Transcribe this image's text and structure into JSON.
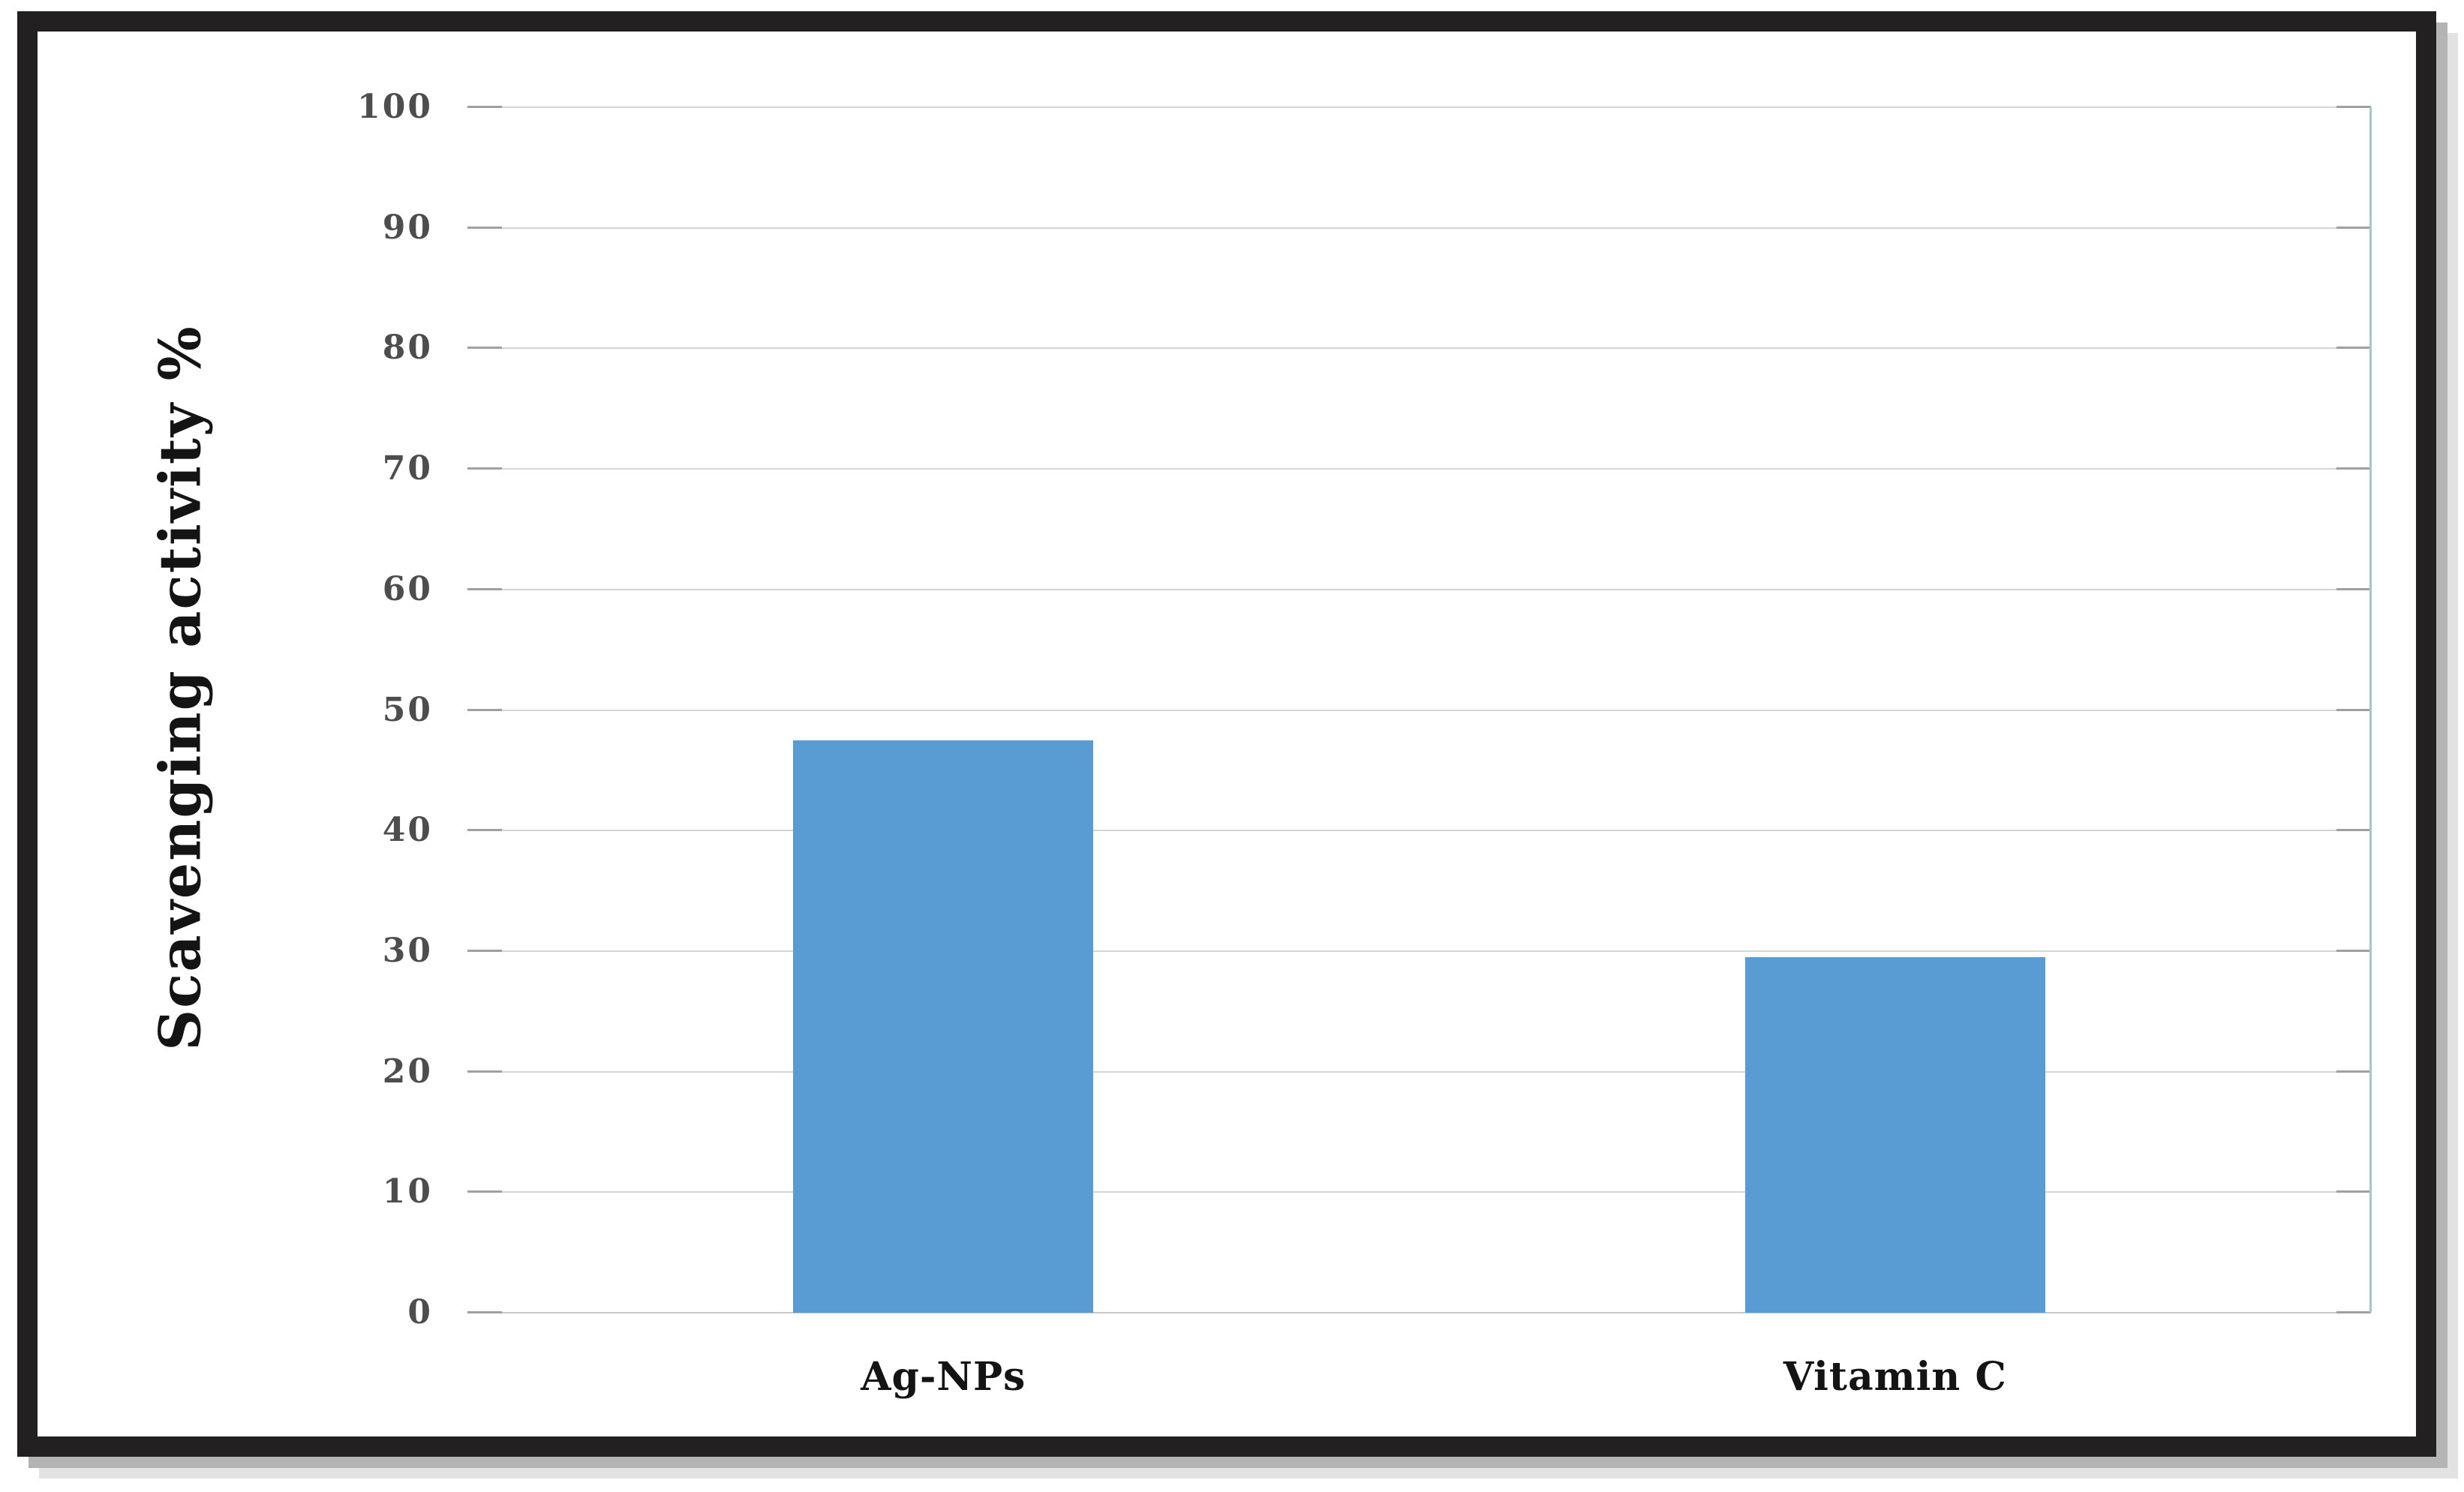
{
  "figure": {
    "background": "#ffffff",
    "frame_color": "#232021",
    "shadow_colors": [
      "#b4b4b4",
      "#e2e2e2"
    ]
  },
  "chart_data": {
    "type": "bar",
    "title": "",
    "xlabel": "",
    "ylabel": "Scavenging activity %",
    "categories": [
      "Ag-NPs",
      "Vitamin C"
    ],
    "values": [
      47.5,
      29.5
    ],
    "ylim": [
      0,
      100
    ],
    "ytick_step": 10,
    "ytick_labels": [
      "0",
      "10",
      "20",
      "30",
      "40",
      "50",
      "60",
      "70",
      "80",
      "90",
      "100"
    ],
    "grid": "horizontal",
    "legend": "none",
    "data_labels": "none",
    "colors": {
      "bar": "#599cd4",
      "gridline": "#d5d5d5",
      "grid_tick": "#a0a0a0",
      "right_axis_line": "#a9c3cf",
      "tick_label": "#4d4d4d",
      "category_label": "#141414"
    }
  }
}
